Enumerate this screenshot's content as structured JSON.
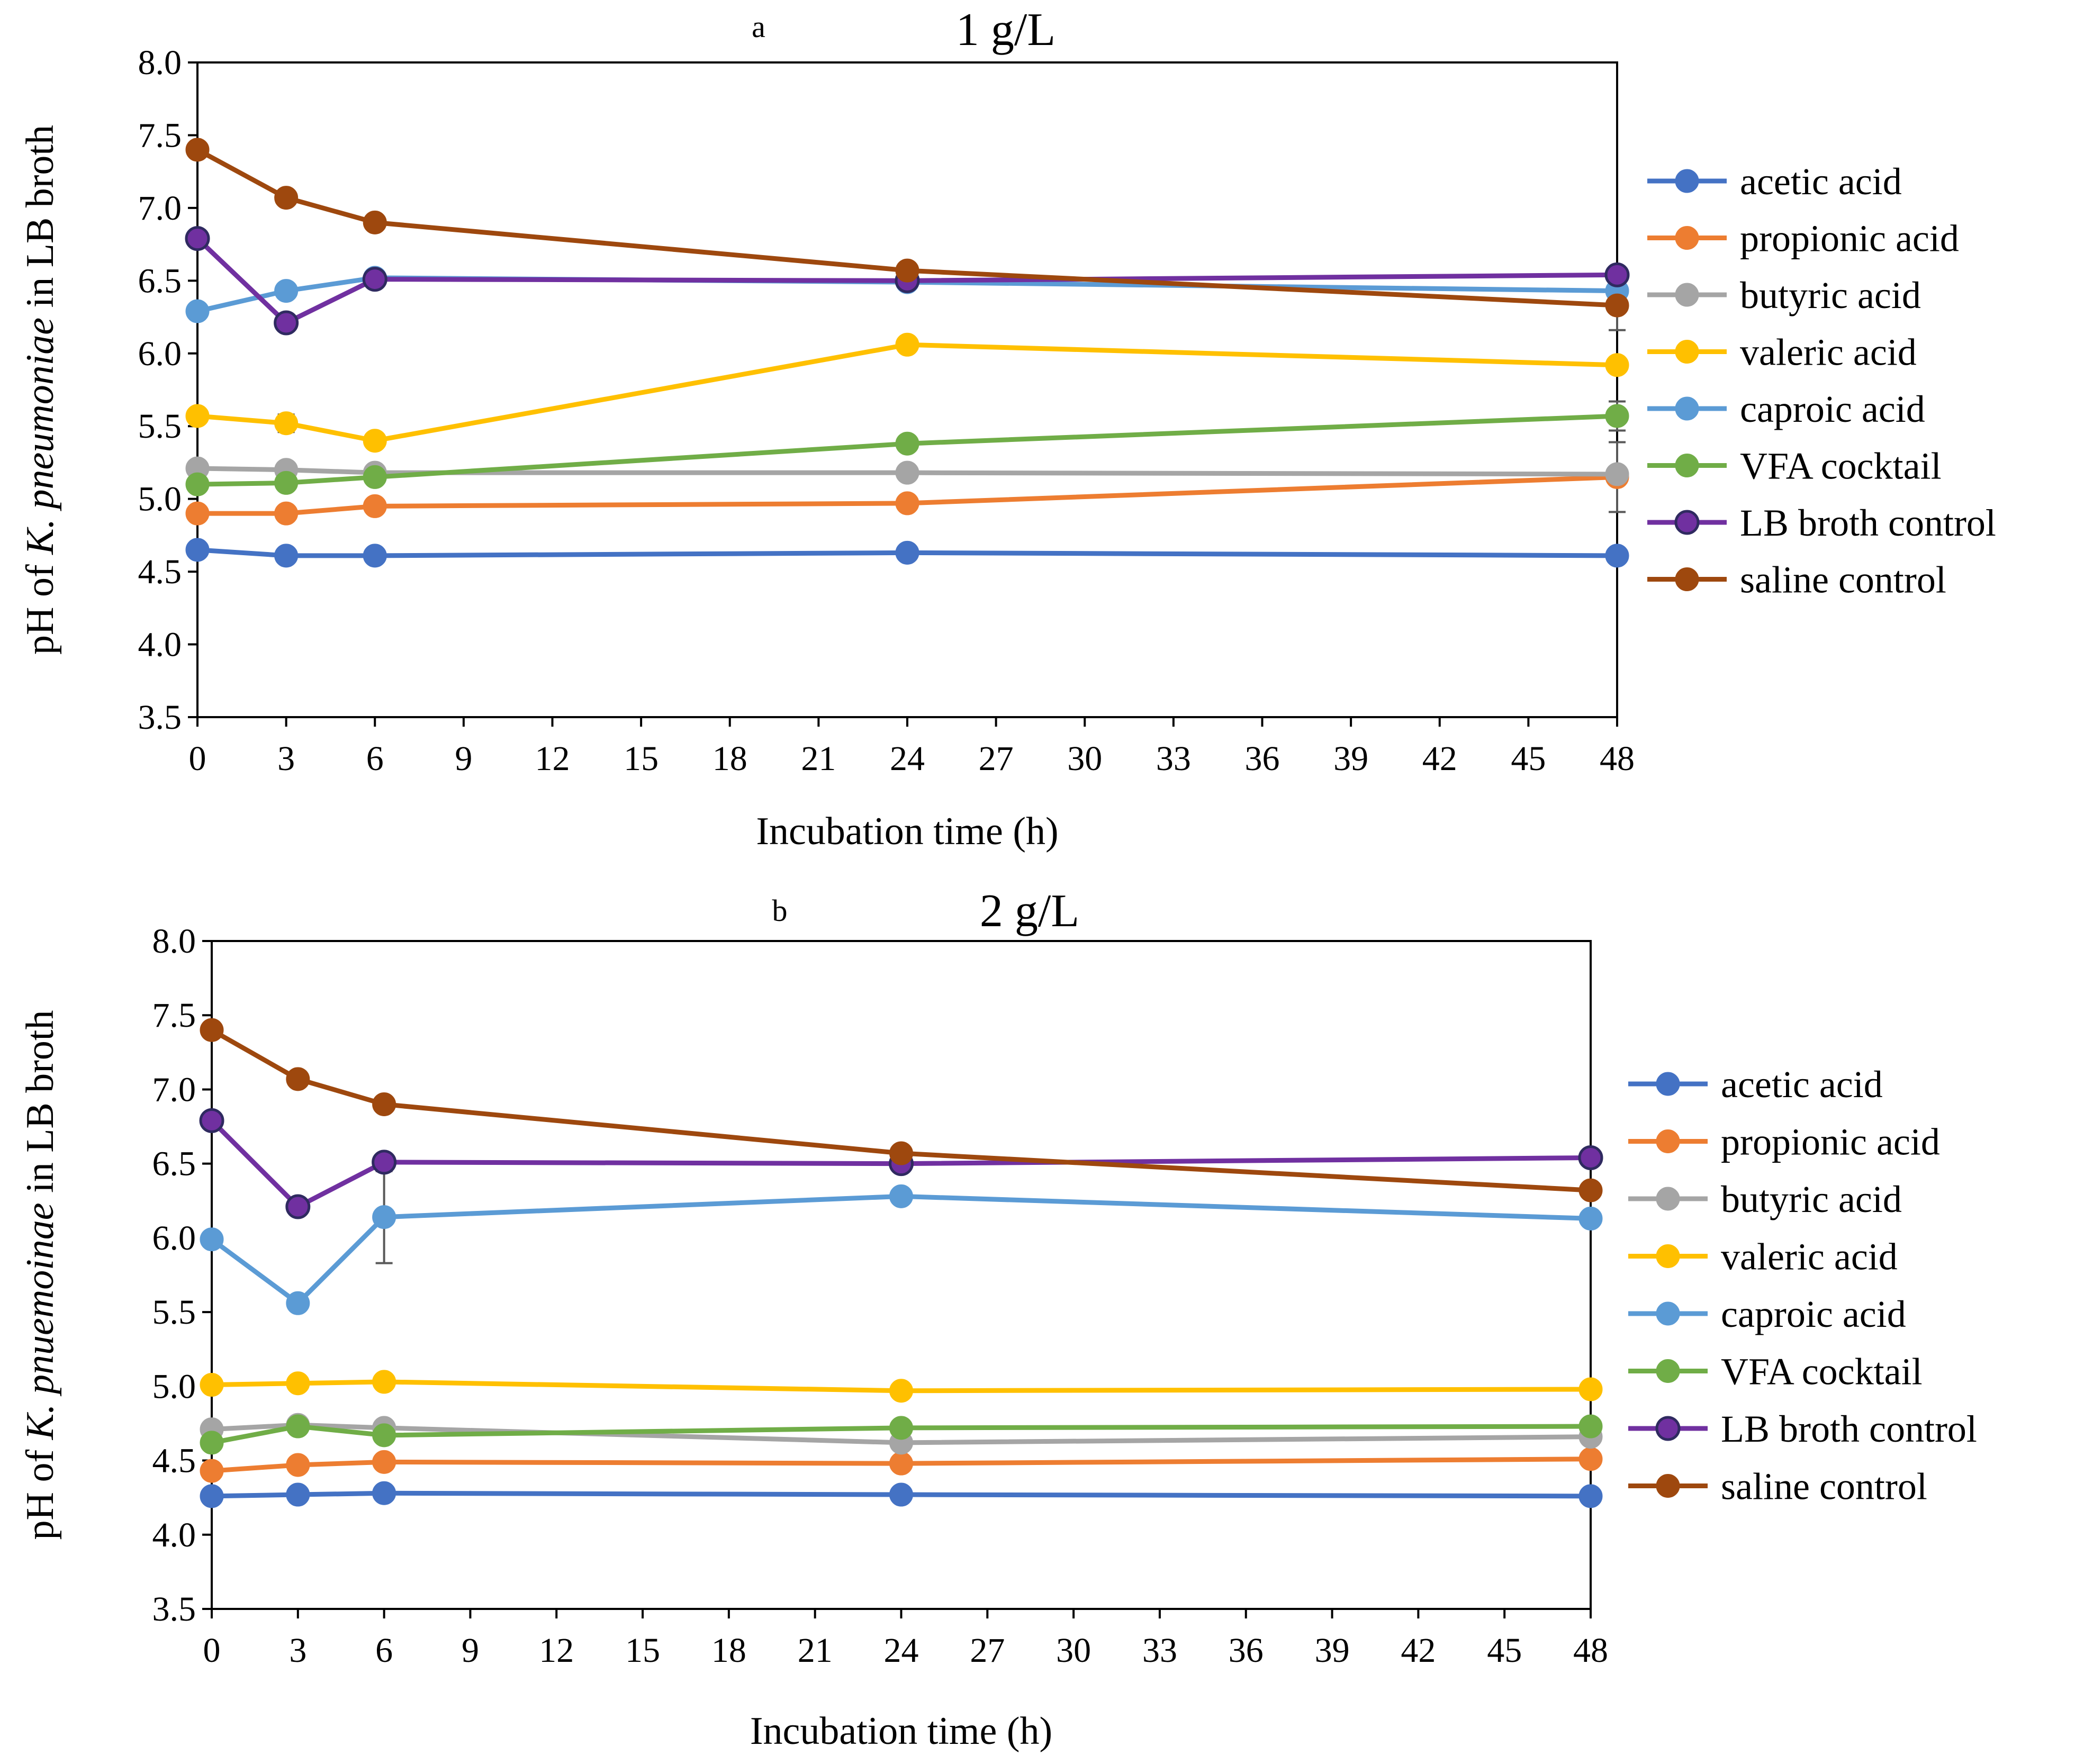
{
  "colors": {
    "acetic": "#4472C4",
    "propionic": "#ED7D31",
    "butyric": "#A5A5A5",
    "valeric": "#FFC000",
    "caproic": "#5B9BD5",
    "vfa": "#70AD47",
    "lb_fill": "#7030A0",
    "lb_edge": "#2F2A60",
    "saline": "#9E480E",
    "axis": "#000000",
    "errorbar": "#595959"
  },
  "chart_data": [
    {
      "type": "line",
      "panel_label": "a",
      "title": "1 g/L",
      "xlabel": "Incubation time (h)",
      "ylabel_prefix": "pH of ",
      "ylabel_italic": "K. pneumoniae",
      "ylabel_suffix": " in LB broth",
      "xlim": [
        0,
        48
      ],
      "ylim": [
        3.5,
        8.0
      ],
      "x_ticks": [
        0,
        3,
        6,
        9,
        12,
        15,
        18,
        21,
        24,
        27,
        30,
        33,
        36,
        39,
        42,
        45,
        48
      ],
      "y_ticks": [
        "3.5",
        "4.0",
        "4.5",
        "5.0",
        "5.5",
        "6.0",
        "6.5",
        "7.0",
        "7.5",
        "8.0"
      ],
      "grid": false,
      "legend_position": "right",
      "x": [
        0,
        3,
        6,
        24,
        48
      ],
      "series": [
        {
          "name": "acetic acid",
          "key": "acetic",
          "values": [
            4.65,
            4.61,
            4.61,
            4.63,
            4.61
          ]
        },
        {
          "name": "propionic acid",
          "key": "propionic",
          "values": [
            4.9,
            4.9,
            4.95,
            4.97,
            5.15
          ],
          "err": [
            0,
            0,
            0,
            0,
            0.24
          ]
        },
        {
          "name": "butyric acid",
          "key": "butyric",
          "values": [
            5.21,
            5.2,
            5.18,
            5.18,
            5.17
          ]
        },
        {
          "name": "valeric acid",
          "key": "valeric",
          "values": [
            5.57,
            5.52,
            5.4,
            6.06,
            5.92
          ],
          "err": [
            0,
            0.06,
            0,
            0,
            0
          ]
        },
        {
          "name": "caproic acid",
          "key": "caproic",
          "values": [
            6.29,
            6.43,
            6.52,
            6.49,
            6.43
          ]
        },
        {
          "name": "VFA cocktail",
          "key": "vfa",
          "values": [
            5.1,
            5.11,
            5.15,
            5.38,
            5.57
          ],
          "err": [
            0,
            0,
            0,
            0,
            0.1
          ]
        },
        {
          "name": "LB broth control",
          "key": "lb",
          "values": [
            6.79,
            6.21,
            6.51,
            6.5,
            6.54
          ]
        },
        {
          "name": "saline control",
          "key": "saline",
          "values": [
            7.4,
            7.07,
            6.9,
            6.57,
            6.33
          ],
          "err": [
            0.05,
            0.05,
            0,
            0,
            0.17
          ]
        }
      ]
    },
    {
      "type": "line",
      "panel_label": "b",
      "title": "2 g/L",
      "xlabel": "Incubation time (h)",
      "ylabel_prefix": "pH of ",
      "ylabel_italic": "K. pnuemoinae",
      "ylabel_suffix": " in LB broth",
      "xlim": [
        0,
        48
      ],
      "ylim": [
        3.5,
        8.0
      ],
      "x_ticks": [
        0,
        3,
        6,
        9,
        12,
        15,
        18,
        21,
        24,
        27,
        30,
        33,
        36,
        39,
        42,
        45,
        48
      ],
      "y_ticks": [
        "3.5",
        "4.0",
        "4.5",
        "5.0",
        "5.5",
        "6.0",
        "6.5",
        "7.0",
        "7.5",
        "8.0"
      ],
      "grid": false,
      "legend_position": "right",
      "x": [
        0,
        3,
        6,
        24,
        48
      ],
      "series": [
        {
          "name": "acetic acid",
          "key": "acetic",
          "values": [
            4.26,
            4.27,
            4.28,
            4.27,
            4.26
          ]
        },
        {
          "name": "propionic acid",
          "key": "propionic",
          "values": [
            4.43,
            4.47,
            4.49,
            4.48,
            4.51
          ]
        },
        {
          "name": "butyric acid",
          "key": "butyric",
          "values": [
            4.71,
            4.74,
            4.72,
            4.62,
            4.66
          ]
        },
        {
          "name": "valeric acid",
          "key": "valeric",
          "values": [
            5.01,
            5.02,
            5.03,
            4.97,
            4.98
          ]
        },
        {
          "name": "caproic acid",
          "key": "caproic",
          "values": [
            5.99,
            5.56,
            6.14,
            6.28,
            6.13
          ],
          "err": [
            0,
            0,
            0.31,
            0,
            0
          ]
        },
        {
          "name": "VFA cocktail",
          "key": "vfa",
          "values": [
            4.62,
            4.73,
            4.67,
            4.72,
            4.73
          ]
        },
        {
          "name": "LB broth control",
          "key": "lb",
          "values": [
            6.79,
            6.21,
            6.51,
            6.5,
            6.54
          ]
        },
        {
          "name": "saline control",
          "key": "saline",
          "values": [
            7.4,
            7.07,
            6.9,
            6.57,
            6.32
          ],
          "err": [
            0.05,
            0.05,
            0,
            0,
            0
          ]
        }
      ]
    }
  ]
}
